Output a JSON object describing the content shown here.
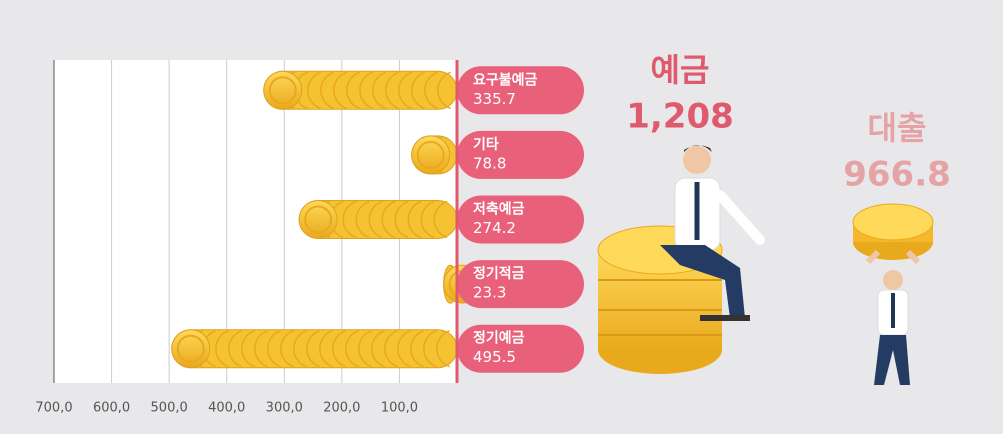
{
  "chart_data": {
    "type": "bar",
    "orientation": "horizontal",
    "reversed_x": true,
    "categories": [
      "요구불예금",
      "기타",
      "저축예금",
      "정기적금",
      "정기예금"
    ],
    "values": [
      335.7,
      78.8,
      274.2,
      23.3,
      495.5
    ],
    "color": "#f5c232",
    "label_color": "#e8607a",
    "xlim": [
      700,
      0
    ],
    "xticks": [
      {
        "value": 700,
        "label": "700,0"
      },
      {
        "value": 600,
        "label": "600,0"
      },
      {
        "value": 500,
        "label": "500,0"
      },
      {
        "value": 400,
        "label": "400,0"
      },
      {
        "value": 300,
        "label": "300,0"
      },
      {
        "value": 200,
        "label": "200,0"
      },
      {
        "value": 100,
        "label": "100,0"
      }
    ],
    "grid": true,
    "summary": {
      "labels": [
        "예금",
        "대출"
      ],
      "values": [
        1208,
        966.8
      ],
      "value_labels": [
        "1,208",
        "966.8"
      ],
      "colors": [
        "#e05a6e",
        "#e6a3a6"
      ]
    }
  }
}
